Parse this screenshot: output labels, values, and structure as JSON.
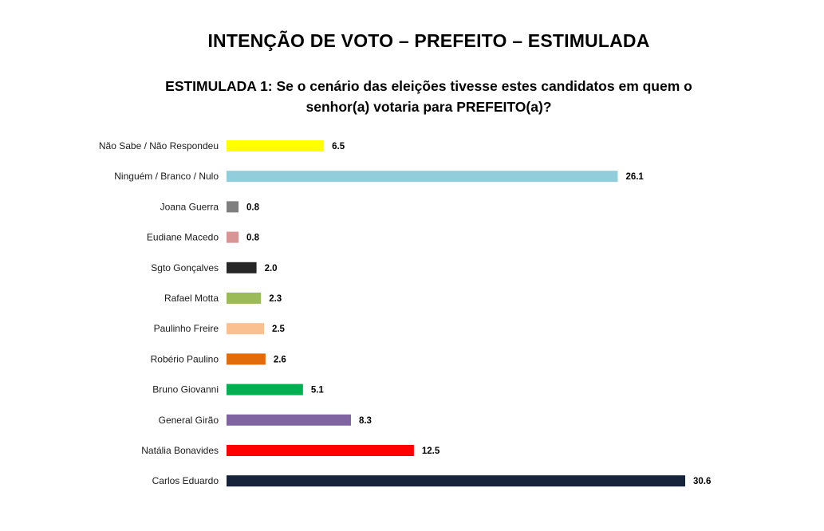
{
  "header": {
    "title": "INTENÇÃO DE VOTO – PREFEITO – ESTIMULADA",
    "subtitle": "ESTIMULADA 1: Se o cenário das eleições tivesse estes candidatos em quem o senhor(a) votaria para PREFEITO(a)?"
  },
  "chart_data": {
    "type": "bar",
    "orientation": "horizontal",
    "title": "INTENÇÃO DE VOTO – PREFEITO – ESTIMULADA",
    "subtitle": "ESTIMULADA 1: Se o cenário das eleições tivesse estes candidatos em quem o senhor(a) votaria para PREFEITO(a)?",
    "xlabel": "",
    "ylabel": "",
    "xlim": [
      0,
      30.6
    ],
    "grid": false,
    "legend": "none",
    "categories": [
      "Não Sabe / Não Respondeu",
      "Ninguém / Branco / Nulo",
      "Joana Guerra",
      "Eudiane Macedo",
      "Sgto Gonçalves",
      "Rafael Motta",
      "Paulinho Freire",
      "Robério Paulino",
      "Bruno Giovanni",
      "General Girão",
      "Natália Bonavides",
      "Carlos Eduardo"
    ],
    "values": [
      6.5,
      26.1,
      0.8,
      0.8,
      2.0,
      2.3,
      2.5,
      2.6,
      5.1,
      8.3,
      12.5,
      30.6
    ],
    "value_labels": [
      "6.5",
      "26.1",
      "0.8",
      "0.8",
      "2.0",
      "2.3",
      "2.5",
      "2.6",
      "5.1",
      "8.3",
      "12.5",
      "30.6"
    ],
    "colors": [
      "#ffff00",
      "#92cddc",
      "#7f7f7f",
      "#d99594",
      "#262626",
      "#9bbb59",
      "#fac090",
      "#e26b0a",
      "#00b050",
      "#8064a2",
      "#ff0000",
      "#17223b"
    ]
  }
}
